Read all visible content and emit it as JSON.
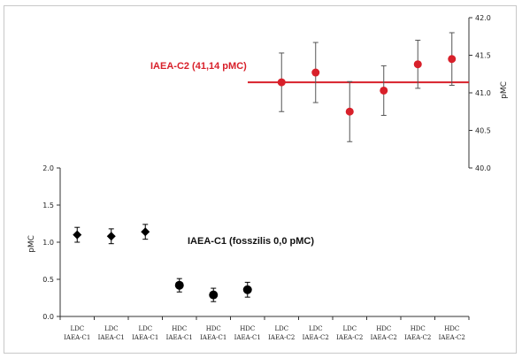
{
  "chart_data": [
    {
      "type": "scatter",
      "name": "IAEA-C1 panel",
      "ylabel": "pMC",
      "ylim": [
        0,
        2.0
      ],
      "yticks": [
        "0.0",
        "0.5",
        "1.0",
        "1.5",
        "2.0"
      ],
      "categories": [
        [
          "LDC",
          "IAEA-C1"
        ],
        [
          "LDC",
          "IAEA-C1"
        ],
        [
          "LDC",
          "IAEA-C1"
        ],
        [
          "HDC",
          "IAEA-C1"
        ],
        [
          "HDC",
          "IAEA-C1"
        ],
        [
          "HDC",
          "IAEA-C1"
        ],
        [
          "LDC",
          "IAEA-C2"
        ],
        [
          "LDC",
          "IAEA-C2"
        ],
        [
          "LDC",
          "IAEA-C2"
        ],
        [
          "HDC",
          "IAEA-C2"
        ],
        [
          "HDC",
          "IAEA-C2"
        ],
        [
          "HDC",
          "IAEA-C2"
        ]
      ],
      "points": [
        {
          "x": 0,
          "y": 1.1,
          "err": 0.1,
          "marker": "diamond"
        },
        {
          "x": 1,
          "y": 1.08,
          "err": 0.1,
          "marker": "diamond"
        },
        {
          "x": 2,
          "y": 1.14,
          "err": 0.1,
          "marker": "diamond"
        },
        {
          "x": 3,
          "y": 0.42,
          "err": 0.09,
          "marker": "circle"
        },
        {
          "x": 4,
          "y": 0.29,
          "err": 0.09,
          "marker": "circle"
        },
        {
          "x": 5,
          "y": 0.36,
          "err": 0.1,
          "marker": "circle"
        }
      ],
      "annotation": "IAEA-C1 (fosszilis 0,0 pMC)",
      "color": "#000000"
    },
    {
      "type": "scatter",
      "name": "IAEA-C2 panel",
      "ylabel": "pMC",
      "y_axis_side": "right",
      "ylim": [
        40.0,
        42.0
      ],
      "yticks": [
        "40.0",
        "40.5",
        "41.0",
        "41.5",
        "42.0"
      ],
      "points": [
        {
          "x": 6,
          "y": 41.14,
          "err": 0.39
        },
        {
          "x": 7,
          "y": 41.27,
          "err": 0.4
        },
        {
          "x": 8,
          "y": 40.75,
          "err": 0.4
        },
        {
          "x": 9,
          "y": 41.03,
          "err": 0.33
        },
        {
          "x": 10,
          "y": 41.38,
          "err": 0.32
        },
        {
          "x": 11,
          "y": 41.45,
          "err": 0.35
        }
      ],
      "reference_line": 41.14,
      "annotation": "IAEA-C2 (41,14 pMC)",
      "color": "#d8202a"
    }
  ]
}
